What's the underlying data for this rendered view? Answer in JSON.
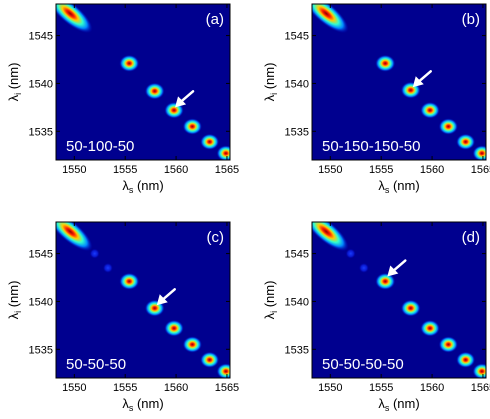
{
  "chart_data": [
    {
      "type": "heatmap",
      "panel_label": "(a)",
      "annotation": "50-100-50",
      "xlabel": "λ",
      "xlabel_sub": "s",
      "xlabel_unit": " (nm)",
      "ylabel": "λ",
      "ylabel_sub": "i",
      "ylabel_unit": " (nm)",
      "x_ticks": [
        1550,
        1555,
        1560,
        1565
      ],
      "y_ticks": [
        1535,
        1540,
        1545
      ],
      "xlim": [
        1548.2,
        1565.3
      ],
      "ylim": [
        1532.0,
        1548.3
      ],
      "peaks": [
        {
          "xs": 1549.6,
          "yi": 1547.3,
          "elongated": true,
          "strength": 1.0
        },
        {
          "xs": 1555.4,
          "yi": 1542.1,
          "strength": 1.0
        },
        {
          "xs": 1557.9,
          "yi": 1539.2,
          "strength": 0.95
        },
        {
          "xs": 1559.8,
          "yi": 1537.2,
          "strength": 0.9
        },
        {
          "xs": 1561.6,
          "yi": 1535.5,
          "strength": 0.85
        },
        {
          "xs": 1563.3,
          "yi": 1533.9,
          "strength": 0.8
        },
        {
          "xs": 1564.9,
          "yi": 1532.7,
          "strength": 0.75
        }
      ],
      "arrow_tip": {
        "xs": 1559.9,
        "yi": 1537.5
      }
    },
    {
      "type": "heatmap",
      "panel_label": "(b)",
      "annotation": "50-150-150-50",
      "xlabel": "λ",
      "xlabel_sub": "s",
      "xlabel_unit": " (nm)",
      "ylabel": "λ",
      "ylabel_sub": "i",
      "ylabel_unit": " (nm)",
      "x_ticks": [
        1550,
        1555,
        1560,
        1565
      ],
      "y_ticks": [
        1535,
        1540,
        1545
      ],
      "xlim": [
        1548.2,
        1565.3
      ],
      "ylim": [
        1532.0,
        1548.3
      ],
      "peaks": [
        {
          "xs": 1549.6,
          "yi": 1547.3,
          "elongated": true,
          "strength": 1.0
        },
        {
          "xs": 1555.4,
          "yi": 1542.1,
          "strength": 1.0
        },
        {
          "xs": 1557.9,
          "yi": 1539.3,
          "strength": 0.95
        },
        {
          "xs": 1559.8,
          "yi": 1537.2,
          "strength": 0.9
        },
        {
          "xs": 1561.6,
          "yi": 1535.5,
          "strength": 0.85
        },
        {
          "xs": 1563.3,
          "yi": 1533.9,
          "strength": 0.8
        },
        {
          "xs": 1564.9,
          "yi": 1532.7,
          "strength": 0.75
        }
      ],
      "arrow_tip": {
        "xs": 1558.1,
        "yi": 1539.6
      }
    },
    {
      "type": "heatmap",
      "panel_label": "(c)",
      "annotation": "50-50-50",
      "xlabel": "λ",
      "xlabel_sub": "s",
      "xlabel_unit": " (nm)",
      "ylabel": "λ",
      "ylabel_sub": "i",
      "ylabel_unit": " (nm)",
      "x_ticks": [
        1550,
        1555,
        1560,
        1565
      ],
      "y_ticks": [
        1535,
        1540,
        1545
      ],
      "xlim": [
        1548.2,
        1565.3
      ],
      "ylim": [
        1532.0,
        1548.3
      ],
      "peaks": [
        {
          "xs": 1549.6,
          "yi": 1547.3,
          "elongated": true,
          "strength": 1.0
        },
        {
          "xs": 1552.0,
          "yi": 1545.0,
          "strength": 0.18
        },
        {
          "xs": 1553.3,
          "yi": 1543.5,
          "strength": 0.18
        },
        {
          "xs": 1555.4,
          "yi": 1542.1,
          "strength": 1.0
        },
        {
          "xs": 1557.9,
          "yi": 1539.3,
          "strength": 0.95
        },
        {
          "xs": 1559.8,
          "yi": 1537.2,
          "strength": 0.9
        },
        {
          "xs": 1561.6,
          "yi": 1535.5,
          "strength": 0.85
        },
        {
          "xs": 1563.3,
          "yi": 1533.9,
          "strength": 0.8
        },
        {
          "xs": 1564.9,
          "yi": 1532.7,
          "strength": 0.75
        }
      ],
      "arrow_tip": {
        "xs": 1558.1,
        "yi": 1539.6
      }
    },
    {
      "type": "heatmap",
      "panel_label": "(d)",
      "annotation": "50-50-50-50",
      "xlabel": "λ",
      "xlabel_sub": "s",
      "xlabel_unit": " (nm)",
      "ylabel": "λ",
      "ylabel_sub": "i",
      "ylabel_unit": " (nm)",
      "x_ticks": [
        1550,
        1555,
        1560,
        1565
      ],
      "y_ticks": [
        1535,
        1540,
        1545
      ],
      "xlim": [
        1548.2,
        1565.3
      ],
      "ylim": [
        1532.0,
        1548.3
      ],
      "peaks": [
        {
          "xs": 1549.6,
          "yi": 1547.3,
          "elongated": true,
          "strength": 1.0
        },
        {
          "xs": 1552.0,
          "yi": 1545.0,
          "strength": 0.18
        },
        {
          "xs": 1553.3,
          "yi": 1543.5,
          "strength": 0.18
        },
        {
          "xs": 1555.4,
          "yi": 1542.1,
          "strength": 1.0
        },
        {
          "xs": 1557.9,
          "yi": 1539.3,
          "strength": 0.95
        },
        {
          "xs": 1559.8,
          "yi": 1537.2,
          "strength": 0.9
        },
        {
          "xs": 1561.6,
          "yi": 1535.5,
          "strength": 0.85
        },
        {
          "xs": 1563.3,
          "yi": 1533.9,
          "strength": 0.8
        },
        {
          "xs": 1564.9,
          "yi": 1532.7,
          "strength": 0.75
        }
      ],
      "arrow_tip": {
        "xs": 1555.6,
        "yi": 1542.6
      }
    }
  ],
  "colors": {
    "background": "#00008f",
    "arrow": "#ffffff",
    "annotation_text": "#ffffff",
    "axis": "#000000"
  }
}
